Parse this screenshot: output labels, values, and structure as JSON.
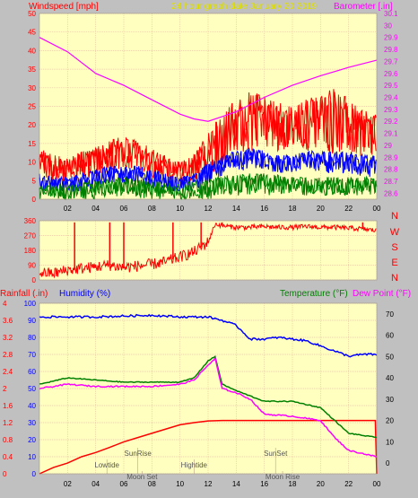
{
  "header": {
    "left_label": "Windspeed [mph]",
    "title": "24 hour graph date   January 20 2019",
    "right_label": "Barometer [.in]"
  },
  "mid_header": {
    "rainfall_label": "Rainfall (.in)",
    "humidity_label": "Humidity (%)",
    "temperature_label": "Temperature (°F)",
    "dewpoint_label": "Dew Point (°F)"
  },
  "colors": {
    "background": "#c0c0c0",
    "plot_bg": "#ffffc0",
    "grid": "#e8c8a0",
    "wind_gust": "#ff0000",
    "wind_avg": "#0000ff",
    "wind_low": "#008000",
    "barometer": "#ff00ff",
    "humidity": "#0000ff",
    "temperature": "#008000",
    "dewpoint": "#ff00ff",
    "rain": "#ff0000",
    "axis_left_red": "#ff0000",
    "axis_left_blue": "#0000ff",
    "axis_right_pink": "#ff00ff",
    "axis_right_red": "#ff0000",
    "axis_right_temp": "#000000"
  },
  "chart_data": [
    {
      "type": "line",
      "name": "wind_barometer",
      "x_ticks": [
        "02",
        "04",
        "06",
        "08",
        "10",
        "12",
        "14",
        "16",
        "18",
        "20",
        "22",
        "00"
      ],
      "y_left_ticks": [
        "50",
        "45",
        "40",
        "35",
        "30",
        "25",
        "20",
        "15",
        "10",
        "5",
        "0"
      ],
      "y_right_ticks": [
        "30.1",
        "30",
        "29.9",
        "29.8",
        "29.7",
        "29.6",
        "29.5",
        "29.4",
        "29.3",
        "29.2",
        "29.1",
        "29",
        "28.9",
        "28.8",
        "28.7",
        "28.6"
      ],
      "ylim_left": [
        0,
        50
      ],
      "ylim_right": [
        28.55,
        30.1
      ],
      "xlim": [
        0,
        24
      ],
      "barometer": {
        "x": [
          0,
          2,
          4,
          6,
          8,
          10,
          11,
          12,
          13,
          14,
          16,
          18,
          20,
          22,
          24
        ],
        "y": [
          29.9,
          29.78,
          29.6,
          29.5,
          29.38,
          29.26,
          29.22,
          29.2,
          29.24,
          29.28,
          29.4,
          29.5,
          29.58,
          29.65,
          29.71
        ]
      },
      "gust_band": {
        "x": [
          0,
          1,
          2,
          3,
          4,
          5,
          6,
          7,
          8,
          9,
          10,
          11,
          12,
          13,
          14,
          15,
          16,
          17,
          18,
          19,
          20,
          21,
          22,
          23,
          24
        ],
        "lo": [
          5,
          4,
          4,
          5,
          6,
          7,
          8,
          8,
          6,
          4,
          3,
          4,
          6,
          9,
          12,
          13,
          14,
          13,
          13,
          13,
          12,
          12,
          12,
          11,
          12
        ],
        "hi": [
          14,
          12,
          11,
          13,
          14,
          16,
          17,
          16,
          14,
          12,
          10,
          12,
          18,
          24,
          27,
          29,
          28,
          26,
          25,
          27,
          28,
          30,
          27,
          24,
          23
        ]
      },
      "avg_band": {
        "x": [
          0,
          1,
          2,
          3,
          4,
          5,
          6,
          7,
          8,
          9,
          10,
          11,
          12,
          13,
          14,
          15,
          16,
          17,
          18,
          19,
          20,
          21,
          22,
          23,
          24
        ],
        "lo": [
          2,
          2,
          2,
          2,
          3,
          4,
          4,
          4,
          3,
          2,
          2,
          2,
          4,
          6,
          7,
          8,
          8,
          7,
          7,
          8,
          7,
          7,
          7,
          6,
          6
        ],
        "hi": [
          7,
          6,
          6,
          7,
          8,
          9,
          9,
          9,
          8,
          7,
          6,
          7,
          10,
          12,
          13,
          14,
          13,
          12,
          12,
          13,
          13,
          13,
          13,
          12,
          12
        ]
      },
      "low_band": {
        "x": [
          0,
          2,
          4,
          6,
          8,
          10,
          12,
          14,
          16,
          18,
          20,
          22,
          24
        ],
        "lo": [
          0,
          0,
          0,
          1,
          0,
          0,
          0,
          1,
          1,
          1,
          1,
          1,
          1
        ],
        "hi": [
          4,
          4,
          5,
          6,
          5,
          4,
          6,
          7,
          7,
          6,
          6,
          6,
          6
        ]
      }
    },
    {
      "type": "line",
      "name": "wind_direction",
      "y_ticks": [
        "360",
        "270",
        "180",
        "90",
        "0"
      ],
      "y_right_ticks": [
        "N",
        "W",
        "S",
        "E",
        "N"
      ],
      "ylim": [
        0,
        360
      ],
      "x": [
        0,
        1,
        2,
        3,
        4,
        5,
        6,
        7,
        8,
        9,
        10,
        11,
        12,
        12.5,
        13,
        14,
        15,
        16,
        17,
        18,
        19,
        20,
        21,
        22,
        23,
        24
      ],
      "y": [
        45,
        40,
        60,
        70,
        80,
        90,
        75,
        85,
        95,
        110,
        140,
        170,
        230,
        340,
        330,
        320,
        320,
        325,
        320,
        320,
        325,
        320,
        320,
        315,
        310,
        300
      ],
      "spikes": [
        2.5,
        5.0,
        6.0,
        9.5,
        11.5,
        13.0,
        23.0
      ]
    },
    {
      "type": "line",
      "name": "rain_humidity_temp",
      "x_ticks": [
        "02",
        "04",
        "06",
        "08",
        "10",
        "12",
        "14",
        "16",
        "18",
        "20",
        "22",
        "00"
      ],
      "y_left_rain_ticks": [
        "4",
        "3.6",
        "3.2",
        "2.8",
        "2.4",
        "2",
        "1.6",
        "1.2",
        "0.8",
        "0.4",
        "0"
      ],
      "y_left_hum_ticks": [
        "100",
        "90",
        "80",
        "70",
        "60",
        "50",
        "40",
        "30",
        "20",
        "10",
        "0"
      ],
      "y_right_ticks": [
        "70",
        "60",
        "50",
        "40",
        "30",
        "20",
        "10",
        "0"
      ],
      "ylim_rain": [
        0,
        4
      ],
      "ylim_hum": [
        0,
        100
      ],
      "ylim_temp": [
        -5,
        75
      ],
      "humidity": {
        "x": [
          0,
          4,
          8,
          10,
          12,
          13,
          14,
          14.5,
          15,
          16,
          17,
          18,
          19,
          20,
          21,
          22,
          23,
          24
        ],
        "y": [
          92,
          92,
          93,
          92,
          92,
          90,
          87,
          83,
          79,
          79,
          80,
          79,
          78,
          75,
          72,
          69,
          70,
          70
        ]
      },
      "temperature": {
        "x": [
          0,
          2,
          4,
          6,
          8,
          10,
          11,
          12,
          12.5,
          13,
          14,
          16,
          18,
          20,
          22,
          24
        ],
        "y": [
          37,
          40,
          39,
          38,
          38,
          38,
          40,
          48,
          50,
          37,
          34,
          29,
          29,
          26,
          14,
          12
        ]
      },
      "dewpoint": {
        "x": [
          0,
          2,
          4,
          6,
          8,
          10,
          11,
          12,
          12.5,
          13,
          14,
          15,
          16,
          18,
          20,
          21,
          22,
          24
        ],
        "y": [
          35,
          37,
          36,
          36,
          36,
          37,
          39,
          46,
          49,
          35,
          33,
          30,
          23,
          22,
          20,
          12,
          6,
          3
        ]
      },
      "rain": {
        "x": [
          0,
          1,
          2,
          3,
          4,
          5,
          6,
          7,
          8,
          9,
          10,
          11,
          12,
          13,
          14,
          16,
          18,
          20,
          23.9,
          24
        ],
        "y": [
          0,
          0.15,
          0.25,
          0.4,
          0.5,
          0.62,
          0.75,
          0.85,
          0.95,
          1.05,
          1.15,
          1.2,
          1.24,
          1.25,
          1.25,
          1.25,
          1.25,
          1.25,
          1.25,
          0
        ]
      },
      "annotations": [
        {
          "text": "Lowtide",
          "x": 4.8,
          "row": 2
        },
        {
          "text": "SunRise",
          "x": 7.0,
          "row": 1
        },
        {
          "text": "Moon Set",
          "x": 7.3,
          "row": 3
        },
        {
          "text": "Hightide",
          "x": 11.0,
          "row": 2
        },
        {
          "text": "SunSet",
          "x": 16.8,
          "row": 1
        },
        {
          "text": "Moon Rise",
          "x": 17.3,
          "row": 3
        }
      ]
    }
  ]
}
